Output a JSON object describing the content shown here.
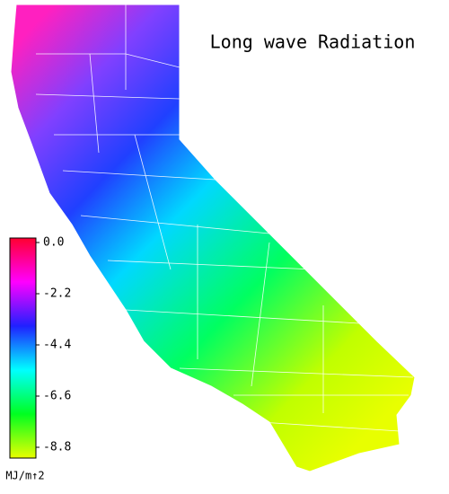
{
  "title": "Long wave Radiation",
  "colorbar": {
    "label": "MJ/m↑2",
    "lim": [
      -8.8,
      0
    ],
    "ticks": [
      {
        "value": 0,
        "label": "0.0"
      },
      -2.2,
      -4.4,
      -6.6,
      -8.8
    ],
    "colors": [
      "#ff0030",
      "#ff00ff",
      "#2020ff",
      "#00ffff",
      "#00ff20",
      "#e8ff00"
    ]
  }
}
